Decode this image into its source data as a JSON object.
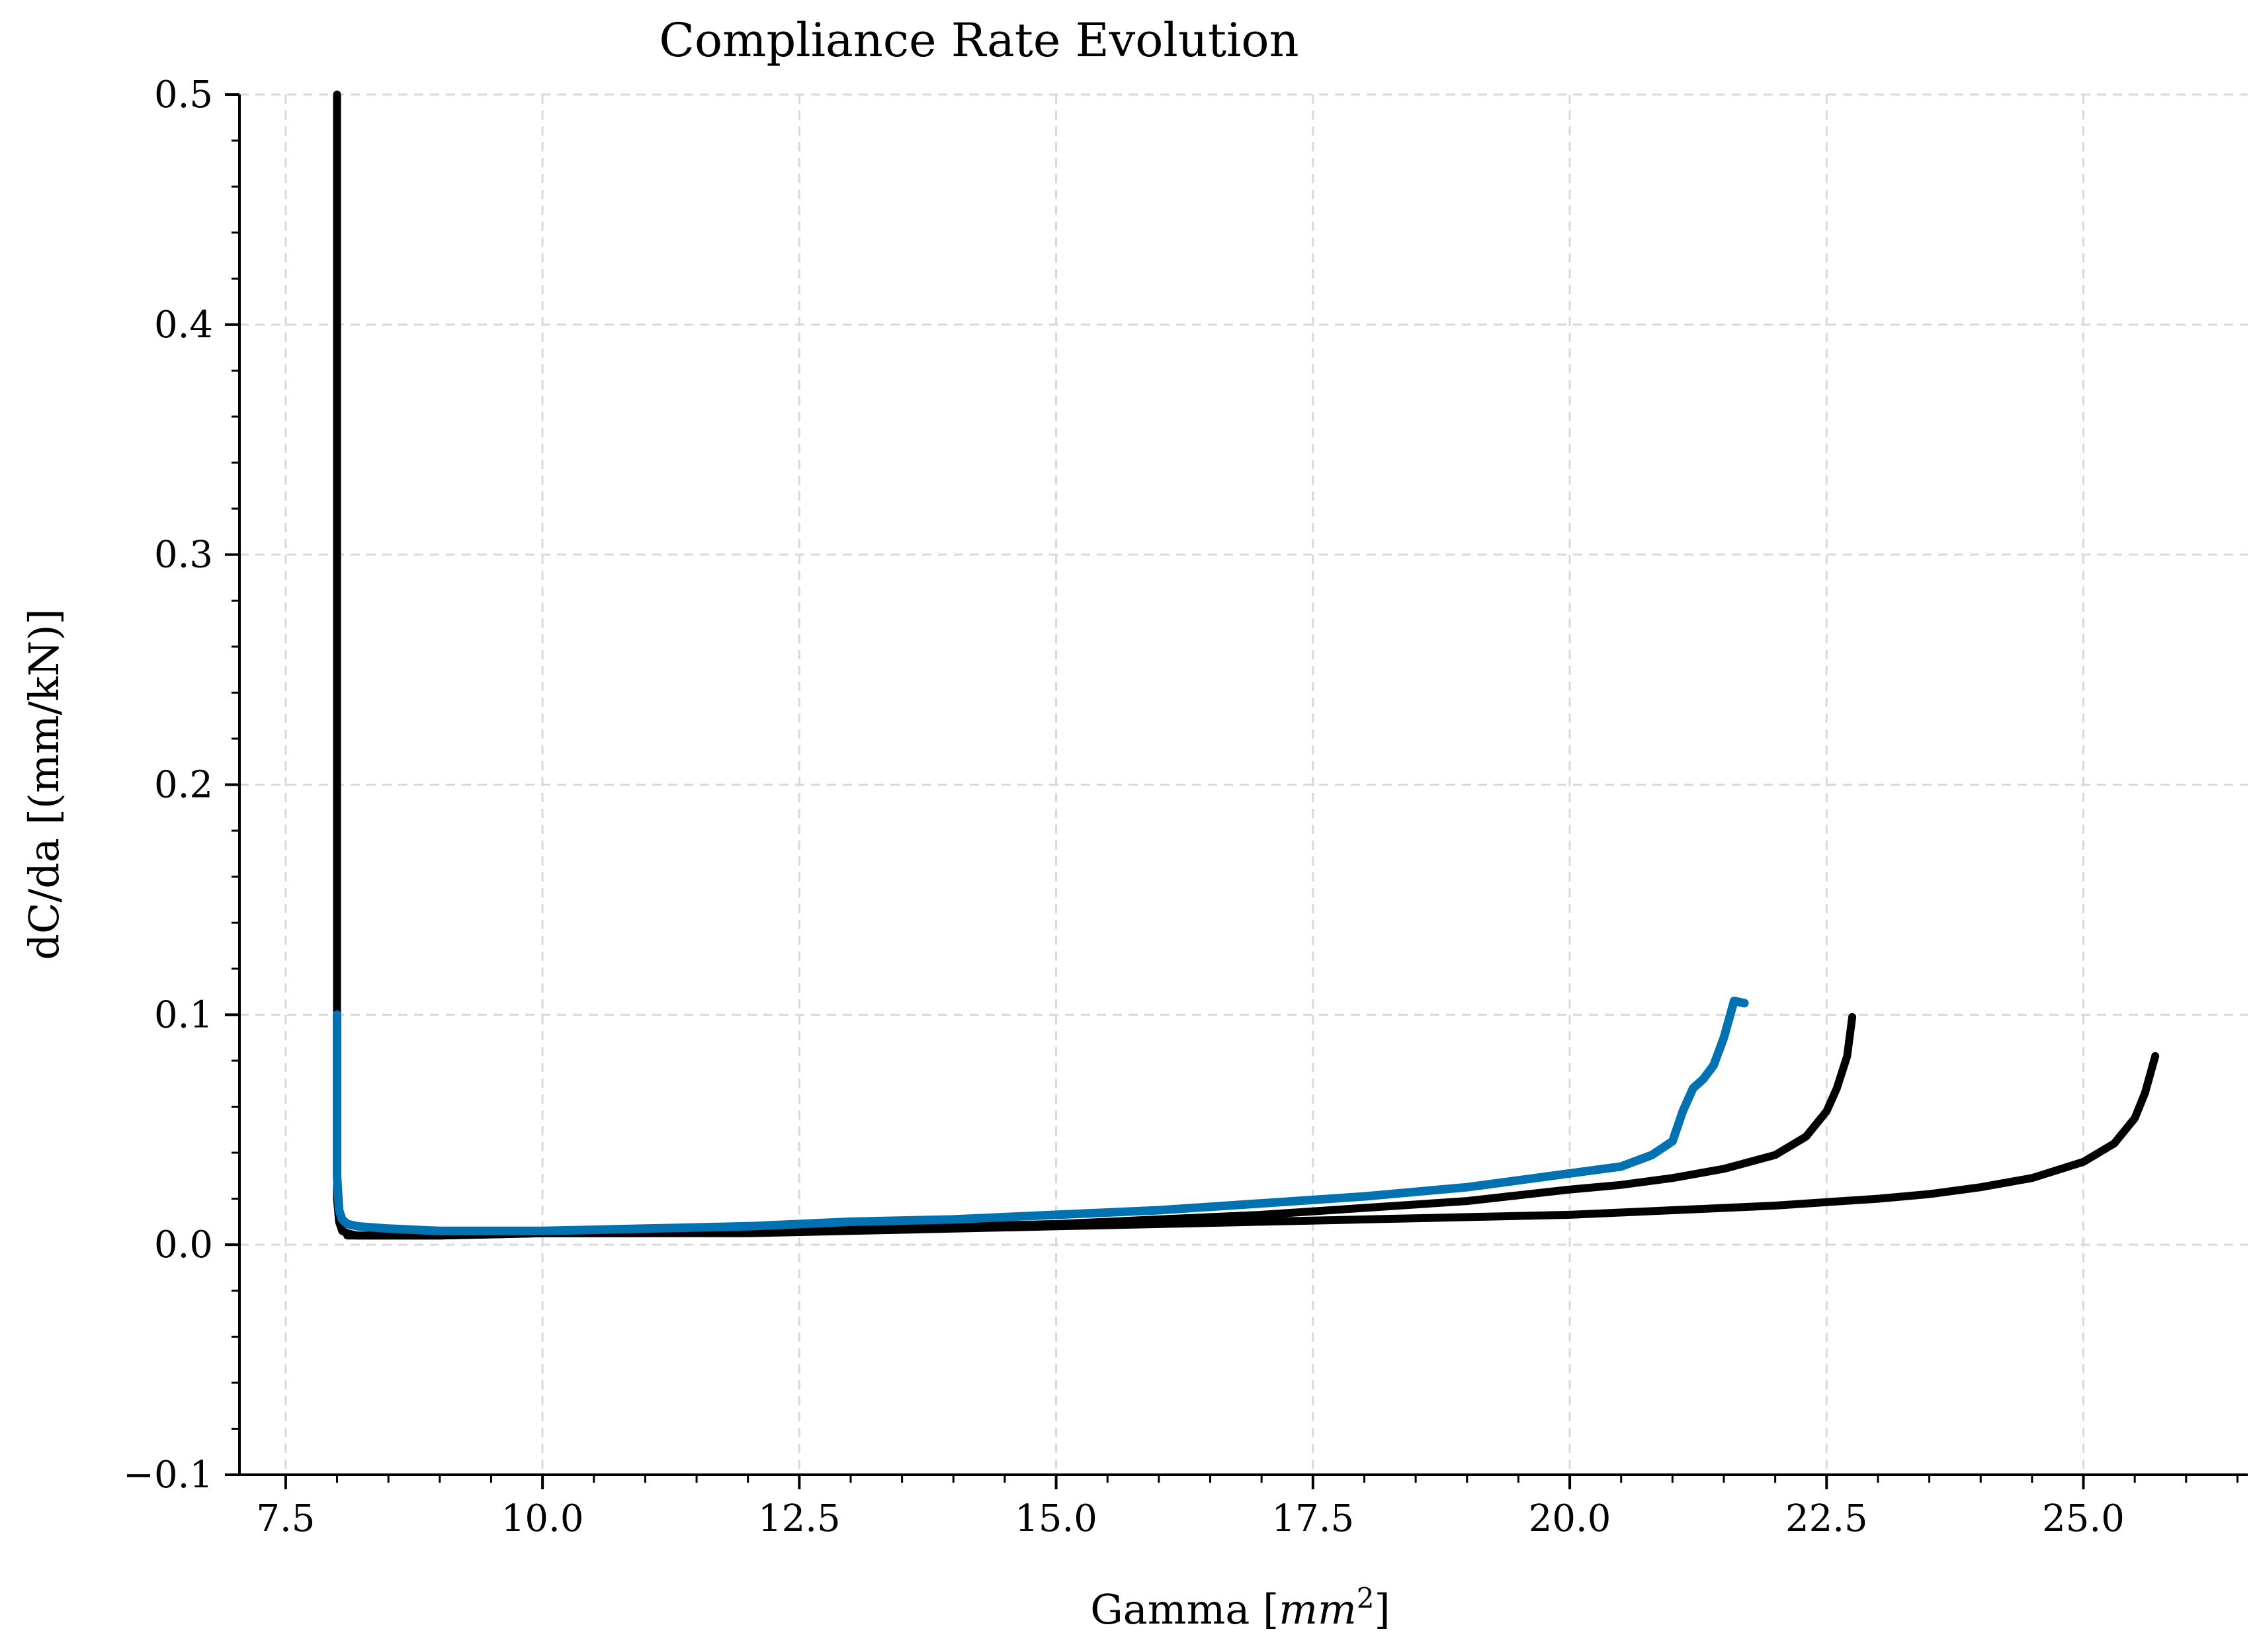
{
  "chart_data": {
    "type": "line",
    "title": "Compliance Rate Evolution",
    "xlabel": "Gamma",
    "xlabel_math": "mm",
    "xlabel_sup": "2",
    "ylabel": "dC/da [(mm/kN)]",
    "xlim": [
      7.05,
      26.6
    ],
    "ylim": [
      -0.1,
      0.5
    ],
    "grid": true,
    "legend": "none",
    "x_ticks": [
      7.5,
      10.0,
      12.5,
      15.0,
      17.5,
      20.0,
      22.5,
      25.0
    ],
    "x_tick_labels": [
      "7.5",
      "10.0",
      "12.5",
      "15.0",
      "17.5",
      "20.0",
      "22.5",
      "25.0"
    ],
    "y_ticks": [
      -0.1,
      0.0,
      0.1,
      0.2,
      0.3,
      0.4,
      0.5
    ],
    "y_tick_labels": [
      "−0.1",
      "0.0",
      "0.1",
      "0.2",
      "0.3",
      "0.4",
      "0.5"
    ],
    "series": [
      {
        "color": "#000000",
        "x": [
          8.0,
          8.0,
          8.02,
          8.05,
          8.1,
          8.2,
          8.5,
          9.0,
          10.0,
          11.0,
          12.0,
          13.0,
          14.0,
          15.0,
          16.0,
          17.0,
          18.0,
          19.0,
          20.0,
          20.5,
          21.0,
          21.5,
          22.0,
          22.3,
          22.5,
          22.6,
          22.7,
          22.75
        ],
        "y": [
          0.5,
          0.02,
          0.01,
          0.006,
          0.005,
          0.004,
          0.004,
          0.004,
          0.005,
          0.005,
          0.006,
          0.007,
          0.008,
          0.009,
          0.011,
          0.013,
          0.016,
          0.019,
          0.024,
          0.026,
          0.029,
          0.033,
          0.039,
          0.047,
          0.058,
          0.068,
          0.082,
          0.099
        ]
      },
      {
        "color": "#000000",
        "x": [
          8.1,
          8.5,
          9.0,
          10.0,
          11.0,
          12.0,
          13.0,
          14.0,
          15.0,
          16.0,
          17.0,
          18.0,
          19.0,
          20.0,
          21.0,
          22.0,
          23.0,
          23.5,
          24.0,
          24.5,
          25.0,
          25.3,
          25.5,
          25.6,
          25.7
        ],
        "y": [
          0.004,
          0.004,
          0.004,
          0.005,
          0.005,
          0.005,
          0.006,
          0.007,
          0.008,
          0.009,
          0.01,
          0.011,
          0.012,
          0.013,
          0.015,
          0.017,
          0.02,
          0.022,
          0.025,
          0.029,
          0.036,
          0.044,
          0.055,
          0.066,
          0.082
        ]
      },
      {
        "color": "#0072b2",
        "x": [
          8.0,
          8.0,
          8.02,
          8.05,
          8.1,
          8.2,
          8.5,
          9.0,
          10.0,
          11.0,
          12.0,
          13.0,
          14.0,
          15.0,
          16.0,
          17.0,
          18.0,
          19.0,
          19.5,
          20.0,
          20.5,
          20.8,
          21.0,
          21.1,
          21.2,
          21.3,
          21.4,
          21.5,
          21.6,
          21.7
        ],
        "y": [
          0.1,
          0.03,
          0.015,
          0.011,
          0.009,
          0.008,
          0.007,
          0.006,
          0.006,
          0.007,
          0.008,
          0.01,
          0.011,
          0.013,
          0.015,
          0.018,
          0.021,
          0.025,
          0.028,
          0.031,
          0.034,
          0.039,
          0.045,
          0.058,
          0.068,
          0.072,
          0.078,
          0.09,
          0.106,
          0.105
        ]
      }
    ]
  }
}
